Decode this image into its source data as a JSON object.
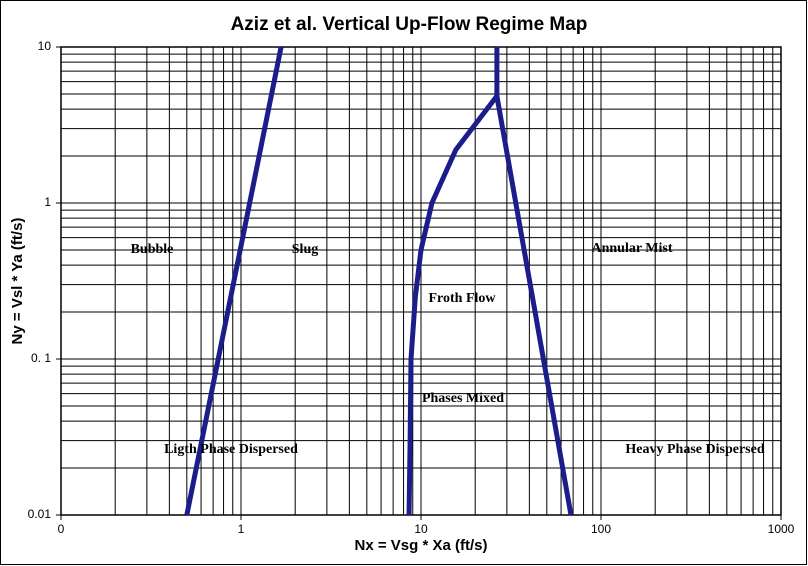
{
  "chart_data": {
    "type": "line",
    "title": "Aziz et al. Vertical Up-Flow Regime Map",
    "x_label": "Nx = Vsg * Xa (ft/s)",
    "y_label": "Ny = Vsl * Ya (ft/s)",
    "log_x": true,
    "log_y": true,
    "grid": true,
    "minor_grid": true,
    "xlim": [
      0.1,
      1000
    ],
    "xticks": [
      {
        "value": 0.1,
        "label": "0"
      },
      1,
      10,
      100,
      1000
    ],
    "ylim": [
      0.01,
      10
    ],
    "yticks": [
      0.01,
      {
        "value": 0.1,
        "label": "0. 1"
      },
      1,
      10
    ],
    "series": [
      {
        "color": "#1c1c8a",
        "x": [
          0.5,
          1.67
        ],
        "values": [
          0.01,
          10
        ]
      },
      {
        "color": "#1c1c8a",
        "x": [
          8.58,
          8.7,
          8.8,
          9.3,
          10.0,
          11.5,
          15.6,
          26.4,
          26.4
        ],
        "values": [
          0.01,
          0.03,
          0.1,
          0.25,
          0.5,
          1,
          2.19,
          4.85,
          10
        ]
      },
      {
        "color": "#1c1c8a",
        "x": [
          26.4,
          68.1
        ],
        "values": [
          4.85,
          0.01
        ]
      }
    ],
    "annotations": [
      "Bubble",
      "Slug",
      "Annular Mist",
      "Froth Flow",
      "Phases Mixed",
      "Ligth Phase Dispersed",
      "Heavy Phase Dispersed"
    ]
  }
}
